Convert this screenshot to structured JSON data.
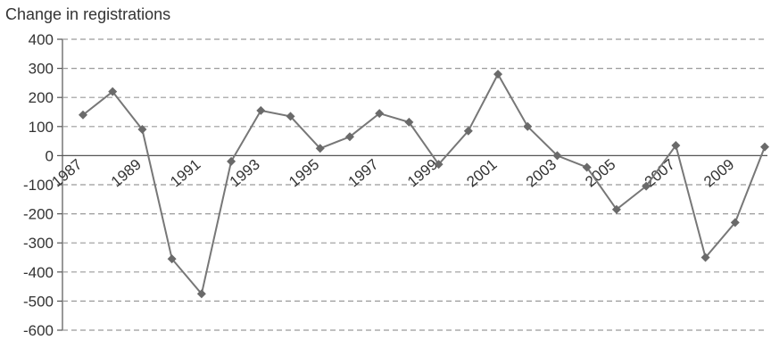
{
  "chart_data": {
    "type": "line",
    "title": "",
    "ylabel": "Change in registrations",
    "xlabel": "",
    "ylim": [
      -600,
      400
    ],
    "yticks": [
      400,
      300,
      200,
      100,
      0,
      -100,
      -200,
      -300,
      -400,
      -500,
      -600
    ],
    "xtick_labels": [
      "1987",
      "1989",
      "1991",
      "1993",
      "1995",
      "1997",
      "1999",
      "2001",
      "2003",
      "2005",
      "2007",
      "2009"
    ],
    "grid": "horizontal dashed",
    "legend": "none",
    "x": [
      1987,
      1988,
      1989,
      1990,
      1991,
      1992,
      1993,
      1994,
      1995,
      1996,
      1997,
      1998,
      1999,
      2000,
      2001,
      2002,
      2003,
      2004,
      2005,
      2006,
      2007,
      2008,
      2009,
      2010
    ],
    "series": [
      {
        "values": [
          140,
          220,
          90,
          -355,
          -475,
          -20,
          155,
          135,
          25,
          65,
          145,
          115,
          -30,
          85,
          280,
          100,
          0,
          -40,
          -185,
          -105,
          35,
          -350,
          -230,
          30
        ]
      }
    ],
    "colors": {
      "line": "#777777",
      "marker": "#6a6a6a",
      "grid": "#9a9a9a",
      "axis": "#555555"
    }
  }
}
